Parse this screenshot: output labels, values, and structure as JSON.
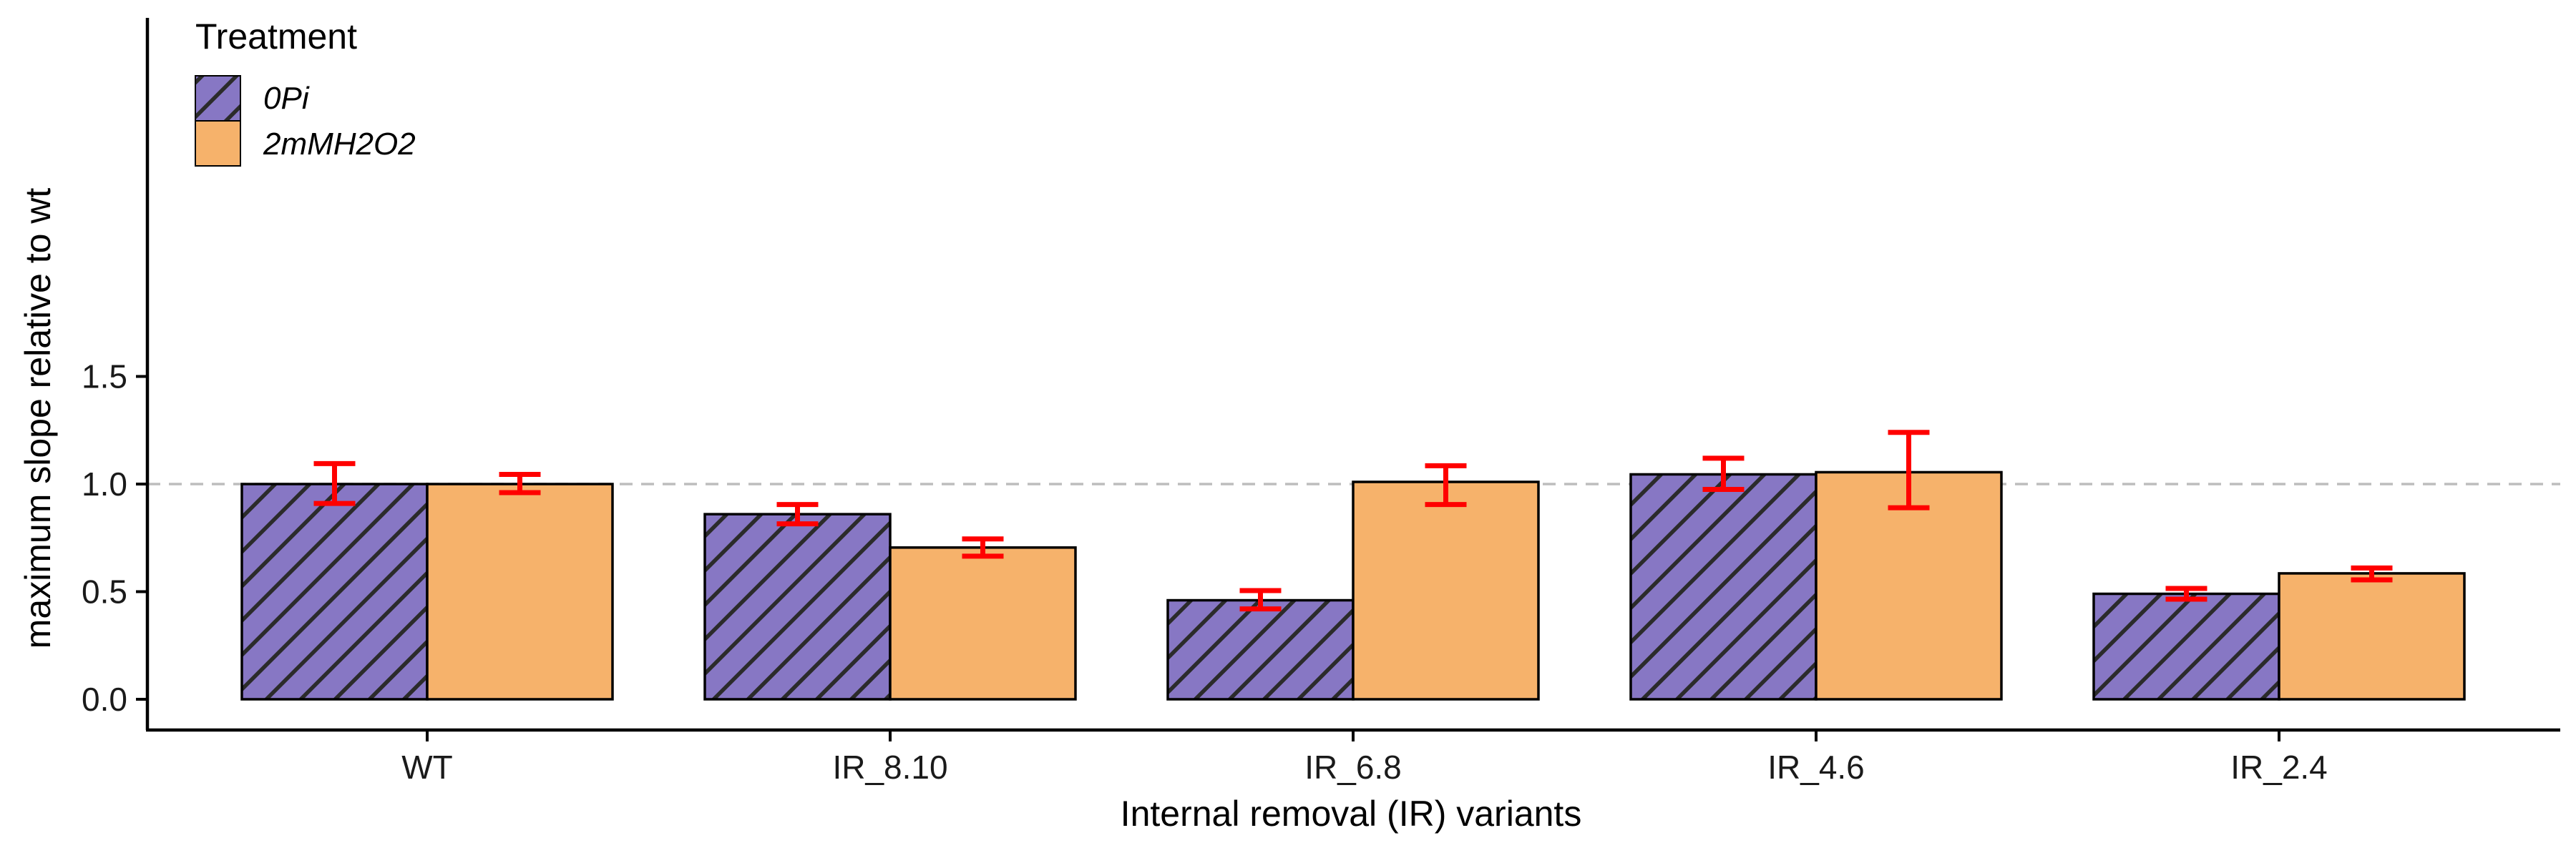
{
  "chart_data": {
    "type": "bar",
    "title": "",
    "xlabel": "Internal removal (IR) variants",
    "ylabel": "maximum slope relative to wt",
    "ylim": [
      -0.07,
      1.6
    ],
    "yticks": [
      0.0,
      0.5,
      1.0,
      1.5
    ],
    "ytick_labels": [
      "0.0",
      "0.5",
      "1.0",
      "1.5"
    ],
    "categories": [
      "WT",
      "IR_8.10",
      "IR_6.8",
      "IR_4.6",
      "IR_2.4"
    ],
    "reference_line": 1.0,
    "legend_title": "Treatment",
    "legend_position": "top-left",
    "series": [
      {
        "name": "0Pi",
        "color": "#8777c4",
        "pattern": "diagonal-stripes",
        "values": [
          1.0,
          0.86,
          0.46,
          1.045,
          0.49
        ],
        "err_low": [
          0.91,
          0.815,
          0.42,
          0.975,
          0.465
        ],
        "err_high": [
          1.095,
          0.905,
          0.505,
          1.12,
          0.515
        ]
      },
      {
        "name": "2mMH2O2",
        "color": "#f6b26b",
        "pattern": "solid",
        "values": [
          1.0,
          0.705,
          1.01,
          1.055,
          0.585
        ],
        "err_low": [
          0.96,
          0.665,
          0.905,
          0.89,
          0.555
        ],
        "err_high": [
          1.045,
          0.745,
          1.085,
          1.24,
          0.61
        ]
      }
    ],
    "error_bar_color": "#ff0000"
  }
}
